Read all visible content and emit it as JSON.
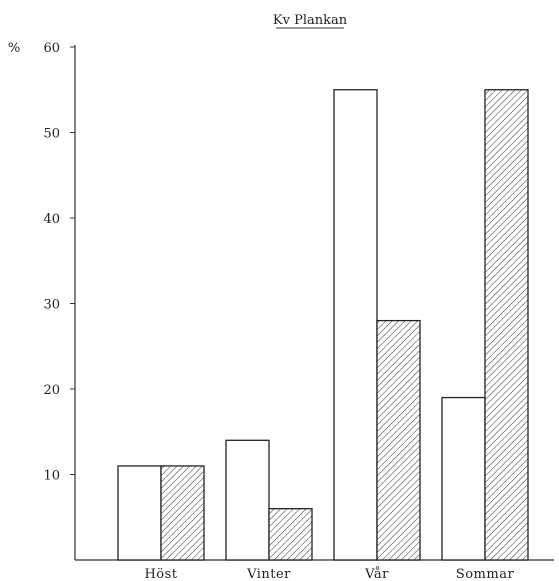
{
  "chart_data": {
    "type": "bar",
    "title": "Kv Plankan",
    "ylabel": "%",
    "xlabel": "",
    "ylim": [
      0,
      60
    ],
    "yticks": [
      10,
      20,
      30,
      40,
      50,
      60
    ],
    "categories": [
      "Höst",
      "Vinter",
      "Vår",
      "Sommar"
    ],
    "series": [
      {
        "values": [
          11,
          14,
          55,
          19
        ],
        "fill": "#ffffff",
        "pattern": "none"
      },
      {
        "values": [
          11,
          6,
          28,
          55
        ],
        "fill": "#ffffff",
        "pattern": "diagonal-hatch"
      }
    ],
    "grid": false,
    "legend": "none"
  }
}
